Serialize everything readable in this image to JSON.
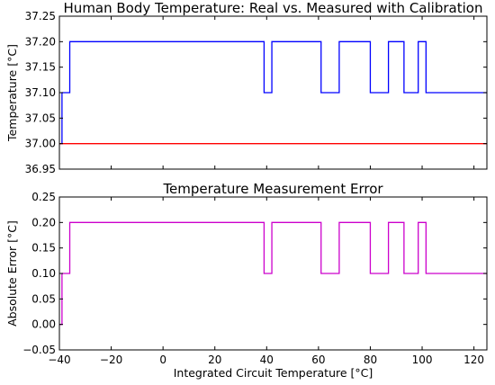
{
  "chart_data": [
    {
      "type": "line",
      "title": "Human Body Temperature: Real vs. Measured with Calibration",
      "xlabel": "",
      "ylabel": "Temperature [°C]",
      "xlim": [
        -40,
        125
      ],
      "ylim": [
        36.95,
        37.25
      ],
      "x_ticks": [
        -40,
        -20,
        0,
        20,
        40,
        60,
        80,
        100,
        120
      ],
      "y_ticks": [
        "36.95",
        "37.00",
        "37.05",
        "37.10",
        "37.15",
        "37.20",
        "37.25"
      ],
      "show_x_tick_labels": false,
      "grid": false,
      "series": [
        {
          "color": "#0000ff",
          "step": "post",
          "x": [
            -40,
            -39,
            -36,
            39,
            42,
            61,
            68,
            80,
            87,
            93,
            98.5,
            101.5,
            125
          ],
          "y": [
            37.0,
            37.1,
            37.2,
            37.1,
            37.2,
            37.1,
            37.2,
            37.1,
            37.2,
            37.1,
            37.2,
            37.1,
            37.1
          ]
        },
        {
          "color": "#ff0000",
          "x": [
            -40,
            125
          ],
          "y": [
            37.0,
            37.0
          ]
        }
      ]
    },
    {
      "type": "line",
      "title": "Temperature Measurement Error",
      "xlabel": "Integrated Circuit Temperature [°C]",
      "ylabel": "Absolute Error [°C]",
      "xlim": [
        -40,
        125
      ],
      "ylim": [
        -0.05,
        0.25
      ],
      "x_ticks": [
        -40,
        -20,
        0,
        20,
        40,
        60,
        80,
        100,
        120
      ],
      "x_tick_labels": [
        "−40",
        "−20",
        "0",
        "20",
        "40",
        "60",
        "80",
        "100",
        "120"
      ],
      "y_ticks": [
        "−0.05",
        "0.00",
        "0.05",
        "0.10",
        "0.15",
        "0.20",
        "0.25"
      ],
      "show_x_tick_labels": true,
      "grid": false,
      "series": [
        {
          "color": "#cc00cc",
          "step": "post",
          "x": [
            -40,
            -39,
            -36,
            39,
            42,
            61,
            68,
            80,
            87,
            93,
            98.5,
            101.5,
            125
          ],
          "y": [
            0.0,
            0.1,
            0.2,
            0.1,
            0.2,
            0.1,
            0.2,
            0.1,
            0.2,
            0.1,
            0.2,
            0.1,
            0.1
          ]
        }
      ]
    }
  ]
}
